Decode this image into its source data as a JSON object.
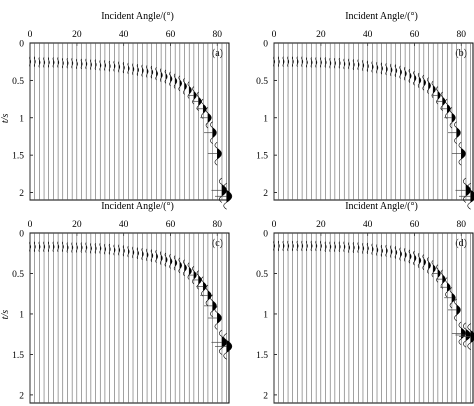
{
  "chart_data": [
    {
      "type": "seismogram",
      "panel_label": "(a)",
      "xlabel": "Incident Angle/(°)",
      "ylabel": "t/s",
      "xticks": [
        "0",
        "20",
        "40",
        "60",
        "80"
      ],
      "yticks": [
        "0",
        "0.5",
        "1",
        "1.5",
        "2"
      ],
      "xlim": [
        0,
        85
      ],
      "ylim": [
        0,
        2.1
      ],
      "y_inverted": true,
      "trace_angles": [
        0,
        2,
        4,
        6,
        8,
        10,
        12,
        14,
        16,
        18,
        20,
        22,
        24,
        26,
        28,
        30,
        32,
        34,
        36,
        38,
        40,
        42,
        44,
        46,
        48,
        50,
        52,
        54,
        56,
        58,
        60,
        62,
        64,
        66,
        68,
        70,
        72,
        74,
        76,
        78,
        80,
        82,
        84
      ],
      "arrival_time_s": [
        0.25,
        0.25,
        0.26,
        0.26,
        0.26,
        0.26,
        0.26,
        0.27,
        0.27,
        0.27,
        0.28,
        0.28,
        0.28,
        0.29,
        0.29,
        0.3,
        0.3,
        0.31,
        0.31,
        0.32,
        0.33,
        0.34,
        0.35,
        0.36,
        0.37,
        0.38,
        0.39,
        0.41,
        0.43,
        0.45,
        0.48,
        0.51,
        0.54,
        0.58,
        0.63,
        0.7,
        0.78,
        0.88,
        1.0,
        1.2,
        1.48,
        1.97,
        2.05
      ]
    },
    {
      "type": "seismogram",
      "panel_label": "(b)",
      "xlabel": "Incident Angle/(°)",
      "ylabel": "",
      "xticks": [
        "0",
        "20",
        "40",
        "60",
        "80"
      ],
      "yticks": [
        "0",
        "0.5",
        "1",
        "1.5",
        "2"
      ],
      "xlim": [
        0,
        85
      ],
      "ylim": [
        0,
        2.1
      ],
      "y_inverted": true,
      "trace_angles": [
        0,
        2,
        4,
        6,
        8,
        10,
        12,
        14,
        16,
        18,
        20,
        22,
        24,
        26,
        28,
        30,
        32,
        34,
        36,
        38,
        40,
        42,
        44,
        46,
        48,
        50,
        52,
        54,
        56,
        58,
        60,
        62,
        64,
        66,
        68,
        70,
        72,
        74,
        76,
        78,
        80,
        82,
        84
      ],
      "arrival_time_s": [
        0.25,
        0.25,
        0.25,
        0.25,
        0.25,
        0.25,
        0.25,
        0.26,
        0.26,
        0.26,
        0.26,
        0.26,
        0.27,
        0.27,
        0.27,
        0.28,
        0.28,
        0.29,
        0.29,
        0.3,
        0.31,
        0.32,
        0.33,
        0.34,
        0.35,
        0.36,
        0.37,
        0.39,
        0.41,
        0.44,
        0.47,
        0.5,
        0.53,
        0.57,
        0.62,
        0.7,
        0.78,
        0.88,
        1.0,
        1.2,
        1.48,
        1.97,
        2.05
      ]
    },
    {
      "type": "seismogram",
      "panel_label": "(c)",
      "xlabel": "Incident Angle/(°)",
      "ylabel": "t/s",
      "xticks": [
        "0",
        "20",
        "40",
        "60",
        "80"
      ],
      "yticks": [
        "0",
        "0.5",
        "1",
        "1.5",
        "2"
      ],
      "xlim": [
        0,
        85
      ],
      "ylim": [
        0,
        2.1
      ],
      "y_inverted": true,
      "trace_angles": [
        0,
        2,
        4,
        6,
        8,
        10,
        12,
        14,
        16,
        18,
        20,
        22,
        24,
        26,
        28,
        30,
        32,
        34,
        36,
        38,
        40,
        42,
        44,
        46,
        48,
        50,
        52,
        54,
        56,
        58,
        60,
        62,
        64,
        66,
        68,
        70,
        72,
        74,
        76,
        78,
        80,
        82,
        84
      ],
      "arrival_time_s": [
        0.17,
        0.17,
        0.17,
        0.17,
        0.17,
        0.17,
        0.17,
        0.17,
        0.18,
        0.18,
        0.18,
        0.18,
        0.18,
        0.19,
        0.19,
        0.19,
        0.2,
        0.2,
        0.21,
        0.21,
        0.22,
        0.23,
        0.24,
        0.25,
        0.26,
        0.27,
        0.28,
        0.29,
        0.31,
        0.33,
        0.35,
        0.37,
        0.4,
        0.43,
        0.47,
        0.52,
        0.58,
        0.66,
        0.77,
        0.9,
        1.05,
        1.35,
        1.4
      ]
    },
    {
      "type": "seismogram",
      "panel_label": "(d)",
      "xlabel": "Incident Angle/(°)",
      "ylabel": "",
      "xticks": [
        "0",
        "20",
        "40",
        "60",
        "80"
      ],
      "yticks": [
        "0",
        "0.5",
        "1",
        "1.5",
        "2"
      ],
      "xlim": [
        0,
        85
      ],
      "ylim": [
        0,
        2.1
      ],
      "y_inverted": true,
      "trace_angles": [
        0,
        2,
        4,
        6,
        8,
        10,
        12,
        14,
        16,
        18,
        20,
        22,
        24,
        26,
        28,
        30,
        32,
        34,
        36,
        38,
        40,
        42,
        44,
        46,
        48,
        50,
        52,
        54,
        56,
        58,
        60,
        62,
        64,
        66,
        68,
        70,
        72,
        74,
        76,
        78,
        80,
        82,
        84
      ],
      "arrival_time_s": [
        0.16,
        0.16,
        0.16,
        0.16,
        0.16,
        0.16,
        0.16,
        0.16,
        0.16,
        0.16,
        0.16,
        0.17,
        0.17,
        0.17,
        0.17,
        0.17,
        0.18,
        0.18,
        0.18,
        0.19,
        0.19,
        0.2,
        0.21,
        0.22,
        0.22,
        0.23,
        0.24,
        0.26,
        0.27,
        0.29,
        0.31,
        0.34,
        0.36,
        0.4,
        0.44,
        0.5,
        0.57,
        0.67,
        0.8,
        0.95,
        1.24,
        1.26,
        1.28
      ]
    }
  ]
}
